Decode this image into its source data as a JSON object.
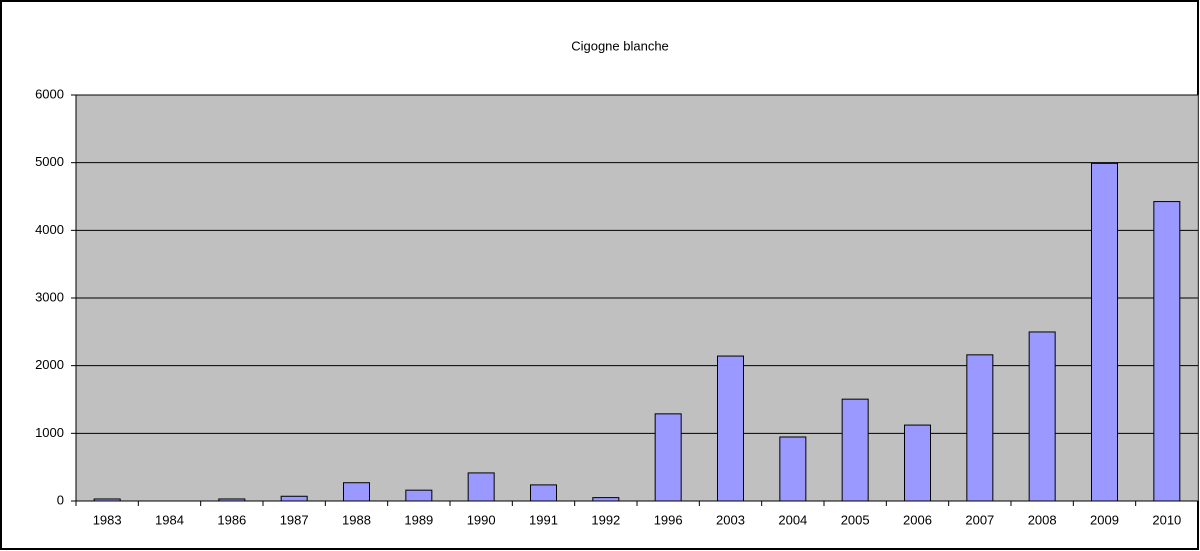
{
  "chart_data": {
    "type": "bar",
    "title": "Cigogne blanche",
    "categories": [
      "1983",
      "1984",
      "1986",
      "1987",
      "1988",
      "1989",
      "1990",
      "1991",
      "1992",
      "1996",
      "2003",
      "2004",
      "2005",
      "2006",
      "2007",
      "2008",
      "2009",
      "2010"
    ],
    "values": [
      30,
      0,
      30,
      70,
      270,
      160,
      415,
      238,
      50,
      1288,
      2142,
      946,
      1505,
      1122,
      2160,
      2498,
      4990,
      4425
    ],
    "color": "#9999ff",
    "ylim": [
      0,
      6000
    ],
    "yticks": [
      0,
      1000,
      2000,
      3000,
      4000,
      5000,
      6000
    ],
    "grid": true
  }
}
